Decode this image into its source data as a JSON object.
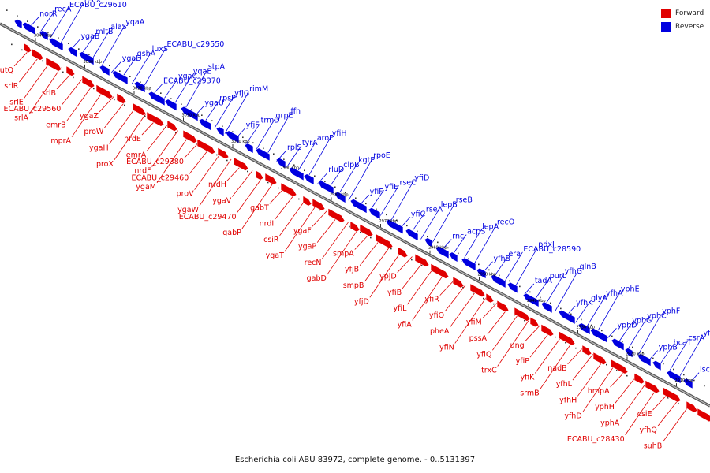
{
  "caption": "Escherichia coli ABU 83972, complete genome. - 0..5131397",
  "colors": {
    "forward": "#e00000",
    "reverse": "#0000e0"
  },
  "legend": [
    {
      "label": "Forward",
      "color": "#e00000"
    },
    {
      "label": "Reverse",
      "color": "#0000e0"
    }
  ],
  "ticks": [
    "3040 kbp",
    "3030 kbp",
    "3020 kbp",
    "3010 kbp",
    "3000 kbp",
    "2990 kbp",
    "2980 kbp",
    "2970 kbp",
    "2960 kbp",
    "2950 kbp",
    "2940 kbp",
    "2930 kbp",
    "2920 kbp",
    "2910 kbp"
  ],
  "reverse_genes": [
    "norR",
    "recA",
    "ECABU_c29610",
    "recX",
    "ygaB",
    "mltB",
    "alaS",
    "yqaA",
    "ygaD",
    "gshA",
    "luxS",
    "ECABU_c29550",
    "ECABU_c29370",
    "ygaC",
    "yqaE",
    "stpA",
    "ygaU",
    "rpsP",
    "yfjG",
    "rimM",
    "yfjF",
    "trmD",
    "grpE",
    "ffh",
    "rplS",
    "tyrA",
    "aroF",
    "yfiH",
    "rluD",
    "clpB",
    "kgtP",
    "rpoE",
    "yfiF",
    "yfiE",
    "rseC",
    "yfiD",
    "yfiC",
    "rseA",
    "lepB",
    "rseB",
    "rnc",
    "acpS",
    "lepA",
    "recO",
    "yfhB",
    "era",
    "ECABU_c28590",
    "pdxJ",
    "tadA",
    "purL",
    "yfhG",
    "glnB",
    "yfhK",
    "glyA",
    "yfhA",
    "yphE",
    "yphD",
    "yphG",
    "yphC",
    "yphF",
    "yphB",
    "hcaT",
    "csrA",
    "yfhQ",
    "iscS"
  ],
  "forward_genes": [
    "gutQ",
    "srlR",
    "srlE",
    "srlA",
    "srlB",
    "ECABU_c29560",
    "emrB",
    "mprA",
    "ygaZ",
    "proW",
    "ygaH",
    "proX",
    "nrdE",
    "emrA",
    "nrdF",
    "ygaM",
    "ECABU_c29380",
    "ECABU_c29460",
    "proV",
    "ygaW",
    "nrdH",
    "ygaV",
    "ECABU_c29470",
    "gabP",
    "gabT",
    "nrdI",
    "csiR",
    "ygaT",
    "ygaF",
    "ygaP",
    "recN",
    "gabD",
    "smpA",
    "yfjB",
    "smpB",
    "yfjD",
    "ypjD",
    "yfiB",
    "yfiL",
    "yfiA",
    "yfiR",
    "yfiO",
    "pheA",
    "yfiN",
    "yfiM",
    "pssA",
    "yfiQ",
    "trxC",
    "ung",
    "yfiP",
    "yfiK",
    "srmB",
    "nadB",
    "yfhL",
    "yfhH",
    "yfhD",
    "hmpA",
    "yphH",
    "yphA",
    "ECABU_c28430",
    "csiE",
    "yfhQ",
    "suhB"
  ]
}
